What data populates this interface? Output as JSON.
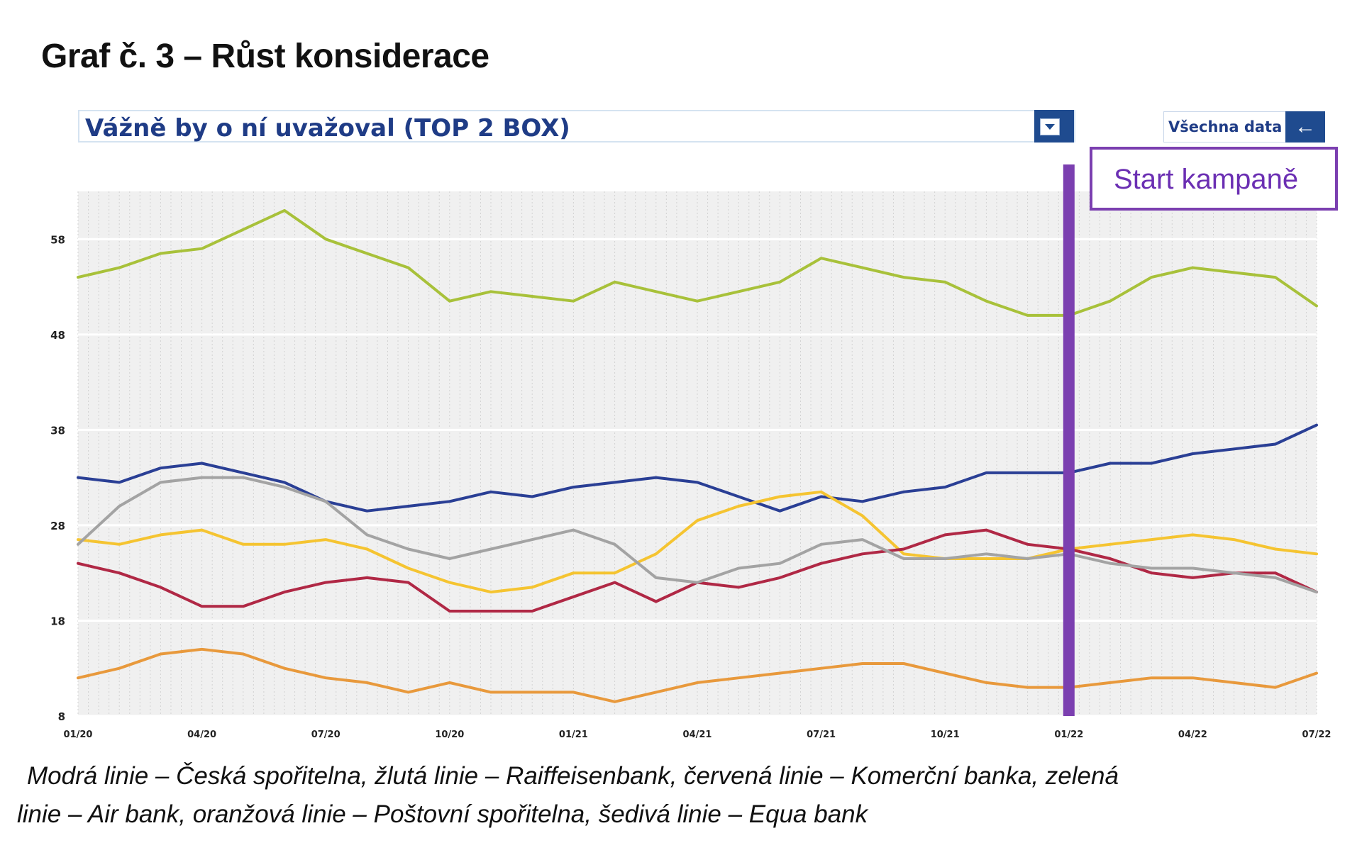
{
  "title": "Graf č. 3 – Růst konsiderace",
  "selector": {
    "label": "Vážně by o ní uvažoval (TOP 2 BOX)",
    "dropdown_icon": "filter-dropdown-icon"
  },
  "all_data": {
    "label": "Všechna data",
    "icon": "arrow-left-icon"
  },
  "campaign": {
    "label": "Start kampaně",
    "date": "2022-01",
    "color": "#7b3fb0"
  },
  "caption": {
    "line1": "Modrá linie – Česká spořitelna, žlutá linie – Raiffeisenbank, červená linie – Komerční banka, zelená",
    "line2": "linie – Air bank, oranžová linie – Poštovní spořitelna, šedivá linie – Equa bank"
  },
  "chart_data": {
    "type": "line",
    "title": "Vážně by o ní uvažoval (TOP 2 BOX)",
    "xlabel": "",
    "ylabel": "",
    "x": [
      "01/20",
      "02/20",
      "03/20",
      "04/20",
      "05/20",
      "06/20",
      "07/20",
      "08/20",
      "09/20",
      "10/20",
      "11/20",
      "12/20",
      "01/21",
      "02/21",
      "03/21",
      "04/21",
      "05/21",
      "06/21",
      "07/21",
      "08/21",
      "09/21",
      "10/21",
      "11/21",
      "12/21",
      "01/22",
      "02/22",
      "03/22",
      "04/22",
      "05/22",
      "06/22",
      "07/22"
    ],
    "x_tick_labels": [
      "01/20",
      "04/20",
      "07/20",
      "10/20",
      "01/21",
      "04/21",
      "07/21",
      "10/21",
      "01/22",
      "04/22",
      "07/22"
    ],
    "y_ticks": [
      8,
      18,
      28,
      38,
      48,
      58
    ],
    "ylim": [
      8,
      63
    ],
    "grid": true,
    "series": [
      {
        "color": "#2a3f95",
        "values": [
          33,
          32.5,
          34,
          34.5,
          33.5,
          32.5,
          30.5,
          29.5,
          30,
          30.5,
          31.5,
          31,
          32,
          32.5,
          33,
          32.5,
          31,
          29.5,
          31,
          30.5,
          31.5,
          32,
          33.5,
          33.5,
          33.5,
          34.5,
          34.5,
          35.5,
          36,
          36.5,
          38.5
        ]
      },
      {
        "color": "#f5c431",
        "values": [
          26.5,
          26,
          27,
          27.5,
          26,
          26,
          26.5,
          25.5,
          23.5,
          22,
          21,
          21.5,
          23,
          23,
          25,
          28.5,
          30,
          31,
          31.5,
          29,
          25,
          24.5,
          24.5,
          24.5,
          25.5,
          26,
          26.5,
          27,
          26.5,
          25.5,
          25
        ]
      },
      {
        "color": "#b02845",
        "values": [
          24,
          23,
          21.5,
          19.5,
          19.5,
          21,
          22,
          22.5,
          22,
          19,
          19,
          19,
          20.5,
          22,
          20,
          22,
          21.5,
          22.5,
          24,
          25,
          25.5,
          27,
          27.5,
          26,
          25.5,
          24.5,
          23,
          22.5,
          23,
          23,
          21
        ]
      },
      {
        "color": "#a8c13a",
        "values": [
          54,
          55,
          56.5,
          57,
          59,
          61,
          58,
          56.5,
          55,
          51.5,
          52.5,
          52,
          51.5,
          53.5,
          52.5,
          51.5,
          52.5,
          53.5,
          56,
          55,
          54,
          53.5,
          51.5,
          50,
          50,
          51.5,
          54,
          55,
          54.5,
          54,
          51
        ]
      },
      {
        "color": "#e8993c",
        "values": [
          12,
          13,
          14.5,
          15,
          14.5,
          13,
          12,
          11.5,
          10.5,
          11.5,
          10.5,
          10.5,
          10.5,
          9.5,
          10.5,
          11.5,
          12,
          12.5,
          13,
          13.5,
          13.5,
          12.5,
          11.5,
          11,
          11,
          11.5,
          12,
          12,
          11.5,
          11,
          12.5
        ]
      },
      {
        "color": "#a3a3a3",
        "values": [
          26,
          30,
          32.5,
          33,
          33,
          32,
          30.5,
          27,
          25.5,
          24.5,
          25.5,
          26.5,
          27.5,
          26,
          22.5,
          22,
          23.5,
          24,
          26,
          26.5,
          24.5,
          24.5,
          25,
          24.5,
          25,
          24,
          23.5,
          23.5,
          23,
          22.5,
          21
        ]
      }
    ]
  }
}
